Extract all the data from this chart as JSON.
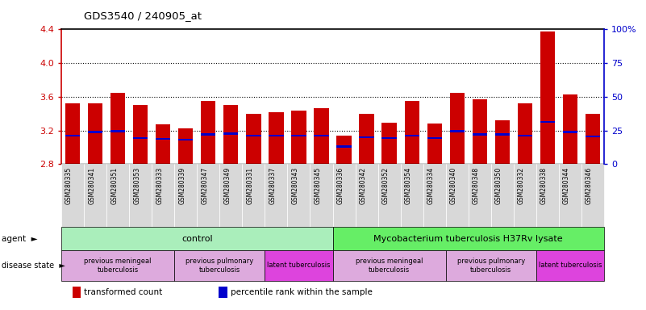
{
  "title": "GDS3540 / 240905_at",
  "samples": [
    "GSM280335",
    "GSM280341",
    "GSM280351",
    "GSM280353",
    "GSM280333",
    "GSM280339",
    "GSM280347",
    "GSM280349",
    "GSM280331",
    "GSM280337",
    "GSM280343",
    "GSM280345",
    "GSM280336",
    "GSM280342",
    "GSM280352",
    "GSM280354",
    "GSM280334",
    "GSM280340",
    "GSM280348",
    "GSM280350",
    "GSM280332",
    "GSM280338",
    "GSM280344",
    "GSM280346"
  ],
  "bar_values": [
    3.52,
    3.52,
    3.65,
    3.5,
    3.27,
    3.22,
    3.55,
    3.5,
    3.4,
    3.42,
    3.44,
    3.46,
    3.14,
    3.4,
    3.29,
    3.55,
    3.28,
    3.65,
    3.57,
    3.32,
    3.52,
    4.38,
    3.63,
    3.4
  ],
  "blue_values": [
    3.14,
    3.18,
    3.19,
    3.11,
    3.1,
    3.09,
    3.15,
    3.16,
    3.14,
    3.14,
    3.14,
    3.14,
    3.01,
    3.12,
    3.11,
    3.14,
    3.11,
    3.19,
    3.15,
    3.15,
    3.14,
    3.3,
    3.18,
    3.13
  ],
  "ymin": 2.8,
  "ymax": 4.4,
  "yticks": [
    2.8,
    3.2,
    3.6,
    4.0,
    4.4
  ],
  "ytick_labels": [
    "2.8",
    "3.2",
    "3.6",
    "4.0",
    "4.4"
  ],
  "y2ticks": [
    0,
    25,
    50,
    75,
    100
  ],
  "y2tick_labels": [
    "0",
    "25",
    "50",
    "75",
    "100%"
  ],
  "bar_color": "#cc0000",
  "blue_color": "#0000cc",
  "agent_groups": [
    {
      "label": "control",
      "start": 0,
      "end": 12,
      "color": "#aaeebb"
    },
    {
      "label": "Mycobacterium tuberculosis H37Rv lysate",
      "start": 12,
      "end": 24,
      "color": "#66ee66"
    }
  ],
  "disease_groups": [
    {
      "label": "previous meningeal\ntuberculosis",
      "start": 0,
      "end": 5,
      "color": "#ddaadd"
    },
    {
      "label": "previous pulmonary\ntuberculosis",
      "start": 5,
      "end": 9,
      "color": "#ddaadd"
    },
    {
      "label": "latent tuberculosis",
      "start": 9,
      "end": 12,
      "color": "#dd44dd"
    },
    {
      "label": "previous meningeal\ntuberculosis",
      "start": 12,
      "end": 17,
      "color": "#ddaadd"
    },
    {
      "label": "previous pulmonary\ntuberculosis",
      "start": 17,
      "end": 21,
      "color": "#ddaadd"
    },
    {
      "label": "latent tuberculosis",
      "start": 21,
      "end": 24,
      "color": "#dd44dd"
    }
  ],
  "agent_label": "agent",
  "disease_label": "disease state",
  "legend_items": [
    {
      "label": "transformed count",
      "color": "#cc0000"
    },
    {
      "label": "percentile rank within the sample",
      "color": "#0000cc"
    }
  ],
  "xtick_box_color": "#d8d8d8",
  "grid_dotted_levels": [
    3.2,
    3.6,
    4.0
  ]
}
